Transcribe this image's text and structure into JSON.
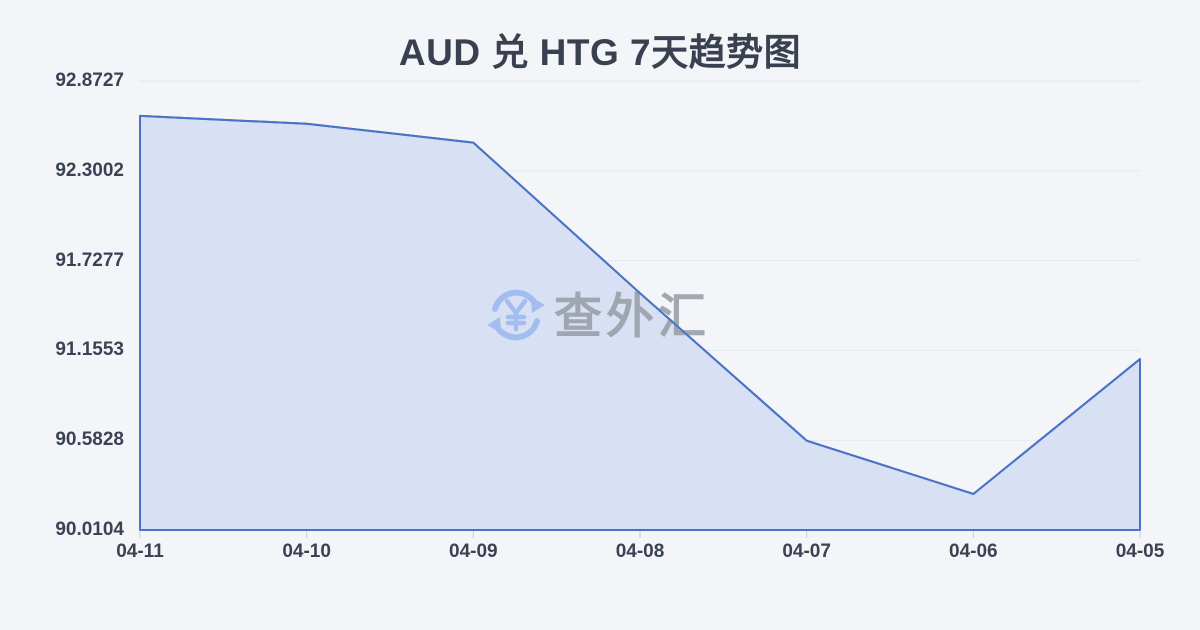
{
  "page": {
    "background": "#f4f5f8"
  },
  "watermark": {
    "text": "查外汇",
    "icon": "currency-exchange-icon",
    "icon_color": "#a2bdee",
    "text_color": "#9aa0a8"
  },
  "chart_data": {
    "type": "area",
    "title": "AUD 兑 HTG 7天趋势图",
    "categories": [
      "04-11",
      "04-10",
      "04-09",
      "04-08",
      "04-07",
      "04-06",
      "04-05"
    ],
    "values": [
      92.65,
      92.6,
      92.48,
      91.52,
      90.58,
      90.24,
      91.1
    ],
    "y_tick_labels": [
      "92.8727",
      "92.3002",
      "91.7277",
      "91.1553",
      "90.5828",
      "90.0104"
    ],
    "ylim": [
      90.0104,
      92.8727
    ],
    "xlabel": "",
    "ylabel": "",
    "grid": true,
    "legend": null,
    "colors": {
      "line": "#4a73c7",
      "fill": "#d8e0f4",
      "grid": "#e5e8ef",
      "tick": "#c9ccd6",
      "axis_text": "#3a4254",
      "title_text": "#394150"
    }
  }
}
